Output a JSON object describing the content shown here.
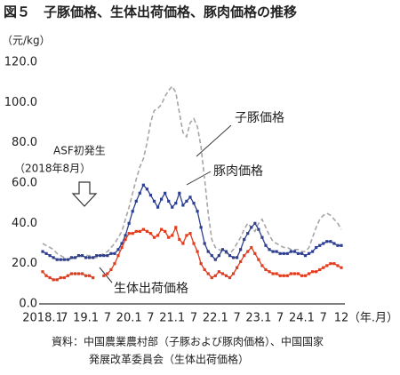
{
  "chart_data": {
    "type": "line",
    "title": "図５　子豚価格、生体出荷価格、豚肉価格の推移",
    "y_unit": "（元/kg）",
    "x_unit": "（年.月）",
    "categories": [
      "2018.1",
      null,
      null,
      null,
      null,
      null,
      "7",
      null,
      null,
      null,
      null,
      null,
      "19.1",
      null,
      null,
      null,
      null,
      null,
      "7",
      null,
      null,
      null,
      null,
      null,
      "20.1",
      null,
      null,
      null,
      null,
      null,
      "7",
      null,
      null,
      null,
      null,
      null,
      "21.1",
      null,
      null,
      null,
      null,
      null,
      "7",
      null,
      null,
      null,
      null,
      null,
      "22.1",
      null,
      null,
      null,
      null,
      null,
      "7",
      null,
      null,
      null,
      null,
      null,
      "23.1",
      null,
      null,
      null,
      null,
      null,
      "7",
      null,
      null,
      null,
      null,
      null,
      "24.1",
      null,
      null,
      null,
      null,
      null,
      "7",
      null,
      null,
      null,
      null,
      "12"
    ],
    "series": [
      {
        "name": "子豚価格",
        "color": "#a6a6a6",
        "dashed": true,
        "markers": false,
        "values": [
          30,
          29,
          28,
          27,
          25,
          24,
          23,
          22,
          22,
          23,
          23,
          24,
          24,
          24,
          23,
          23,
          24,
          25,
          26,
          28,
          30,
          33,
          36,
          42,
          48,
          55,
          62,
          68,
          72,
          80,
          90,
          96,
          97,
          99,
          103,
          106,
          108,
          105,
          95,
          85,
          83,
          90,
          92,
          88,
          78,
          62,
          45,
          32,
          28,
          27,
          26,
          25,
          25,
          27,
          30,
          33,
          37,
          40,
          38,
          36,
          40,
          42,
          38,
          34,
          31,
          30,
          29,
          28,
          28,
          27,
          27,
          27,
          26,
          26,
          28,
          33,
          38,
          42,
          44,
          45,
          44,
          42,
          40,
          37
        ]
      },
      {
        "name": "豚肉価格",
        "color": "#2e3f8f",
        "dashed": false,
        "markers": true,
        "values": [
          26,
          25,
          24,
          23,
          22,
          22,
          22,
          22,
          23,
          23,
          24,
          24,
          23,
          23,
          23,
          24,
          24,
          24,
          24,
          25,
          25,
          27,
          30,
          34,
          40,
          46,
          51,
          55,
          59,
          57,
          54,
          51,
          48,
          52,
          55,
          51,
          48,
          50,
          55,
          49,
          51,
          53,
          50,
          46,
          38,
          30,
          26,
          24,
          22,
          24,
          27,
          26,
          24,
          23,
          23,
          27,
          32,
          35,
          38,
          40,
          37,
          33,
          29,
          27,
          26,
          26,
          25,
          25,
          25,
          26,
          26,
          25,
          25,
          24,
          25,
          26,
          28,
          29,
          30,
          31,
          31,
          30,
          29,
          29
        ]
      },
      {
        "name": "生体出荷価格",
        "color": "#e03c1e",
        "dashed": false,
        "markers": true,
        "values": [
          16,
          14,
          13,
          12,
          12,
          13,
          13,
          14,
          15,
          15,
          15,
          15,
          14,
          14,
          13,
          null,
          null,
          14,
          15,
          17,
          20,
          24,
          28,
          32,
          35,
          35,
          36,
          36,
          37,
          36,
          35,
          33,
          34,
          37,
          36,
          33,
          34,
          38,
          32,
          30,
          34,
          35,
          30,
          26,
          20,
          17,
          15,
          13,
          14,
          16,
          15,
          14,
          13,
          15,
          18,
          21,
          24,
          26,
          28,
          25,
          22,
          19,
          17,
          16,
          15,
          15,
          14,
          14,
          14,
          15,
          15,
          15,
          14,
          14,
          15,
          16,
          16,
          17,
          18,
          19,
          20,
          20,
          19,
          18
        ]
      }
    ],
    "annotations": [
      "ASF初発生",
      "（2018年8月）"
    ],
    "source": [
      "資料：中国農業農村部（子豚および豚肉価格）、中国国家",
      "発展改革委員会（生体出荷価格）"
    ],
    "ylim": [
      0,
      120
    ],
    "yticks": [
      {
        "value": 0,
        "label": "0.0"
      },
      {
        "value": 20,
        "label": "20.0"
      },
      {
        "value": 40,
        "label": "40.0"
      },
      {
        "value": 60,
        "label": "60.0"
      },
      {
        "value": 80,
        "label": "80.0"
      },
      {
        "value": 100,
        "label": "100.0"
      },
      {
        "value": 120,
        "label": "120.0"
      }
    ],
    "grid": false
  }
}
